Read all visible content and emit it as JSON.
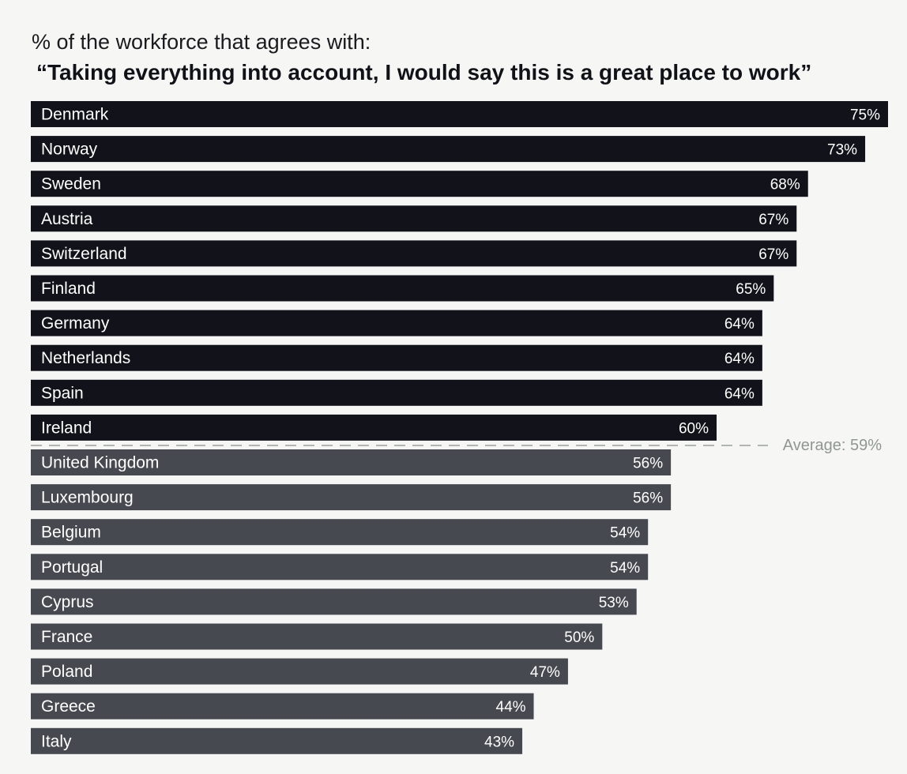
{
  "title": "% of the workforce that agrees with:",
  "subtitle": "“Taking everything into account, I would say this is a great place to work”",
  "colors": {
    "above_average_bar": "#12121a",
    "below_average_bar": "#464a50",
    "average_line": "#9aa09e",
    "background": "#f6f7f5"
  },
  "chart_data": {
    "type": "bar",
    "orientation": "horizontal",
    "title": "% of the workforce that agrees with:",
    "subtitle": "“Taking everything into account, I would say this is a great place to work”",
    "categories": [
      "Denmark",
      "Norway",
      "Sweden",
      "Austria",
      "Switzerland",
      "Finland",
      "Germany",
      "Netherlands",
      "Spain",
      "Ireland",
      "United Kingdom",
      "Luxembourg",
      "Belgium",
      "Portugal",
      "Cyprus",
      "France",
      "Poland",
      "Greece",
      "Italy"
    ],
    "values": [
      75,
      73,
      68,
      67,
      67,
      65,
      64,
      64,
      64,
      60,
      56,
      56,
      54,
      54,
      53,
      50,
      47,
      44,
      43
    ],
    "value_labels": [
      "75%",
      "73%",
      "68%",
      "67%",
      "67%",
      "65%",
      "64%",
      "64%",
      "64%",
      "60%",
      "56%",
      "56%",
      "54%",
      "54%",
      "53%",
      "50%",
      "47%",
      "44%",
      "43%"
    ],
    "unit": "%",
    "xlim": [
      0,
      75
    ],
    "average": {
      "value": 59,
      "label": "Average: 59%"
    },
    "grid": false,
    "legend": "none"
  }
}
